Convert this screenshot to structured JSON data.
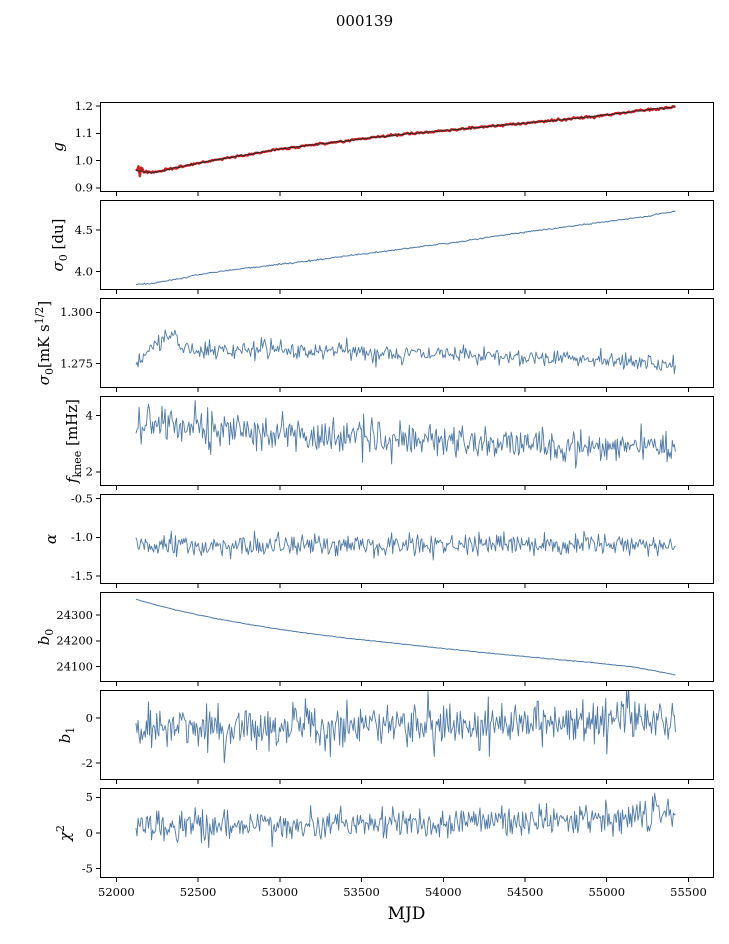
{
  "chart_data": {
    "type": "line",
    "title": "000139",
    "xlabel": "MJD",
    "x_range": [
      51900,
      55650
    ],
    "x_data_range": [
      52120,
      55420
    ],
    "xtick_values": [
      52000,
      52500,
      53000,
      53500,
      54000,
      54500,
      55000,
      55500
    ],
    "xtick_labels": [
      "52000",
      "52500",
      "53000",
      "53500",
      "54000",
      "54500",
      "55000",
      "55500"
    ],
    "axis_color": "#000000",
    "line_color_blue": "#4d79a7",
    "line_color_red": "#cc2020",
    "line_color_dark": "#262626",
    "subplots": [
      {
        "slug": "g",
        "ylabel": [
          [
            "g",
            "it"
          ]
        ],
        "ylim": [
          0.885,
          1.215
        ],
        "yticks": [
          0.9,
          1.0,
          1.1,
          1.2
        ],
        "ytick_labels": [
          "0.9",
          "1.0",
          "1.1",
          "1.2"
        ],
        "series": [
          {
            "name": "g-calibration-red",
            "color": "#cc2020",
            "width": 2.4,
            "n": 420,
            "noise": 0.002,
            "seed": 7,
            "start_noise": {
              "amp": 0.03,
              "tau": 4
            },
            "anchors": [
              [
                52120,
                0.966
              ],
              [
                52170,
                0.957
              ],
              [
                52250,
                0.958
              ],
              [
                52400,
                0.979
              ],
              [
                52600,
                1.002
              ],
              [
                52800,
                1.022
              ],
              [
                53000,
                1.043
              ],
              [
                53200,
                1.058
              ],
              [
                53400,
                1.072
              ],
              [
                53600,
                1.087
              ],
              [
                53800,
                1.099
              ],
              [
                54000,
                1.11
              ],
              [
                54200,
                1.121
              ],
              [
                54400,
                1.132
              ],
              [
                54600,
                1.143
              ],
              [
                54800,
                1.154
              ],
              [
                55000,
                1.168
              ],
              [
                55150,
                1.179
              ],
              [
                55300,
                1.19
              ],
              [
                55420,
                1.197
              ]
            ]
          },
          {
            "name": "g-calibration-dark",
            "color": "#262626",
            "width": 0.9,
            "n": 420,
            "noise": 0.0012,
            "seed": 8,
            "anchors": [
              [
                52120,
                0.966
              ],
              [
                52170,
                0.957
              ],
              [
                52250,
                0.958
              ],
              [
                52400,
                0.979
              ],
              [
                52600,
                1.002
              ],
              [
                52800,
                1.022
              ],
              [
                53000,
                1.043
              ],
              [
                53200,
                1.058
              ],
              [
                53400,
                1.072
              ],
              [
                53600,
                1.087
              ],
              [
                53800,
                1.099
              ],
              [
                54000,
                1.11
              ],
              [
                54200,
                1.121
              ],
              [
                54400,
                1.132
              ],
              [
                54600,
                1.143
              ],
              [
                54800,
                1.154
              ],
              [
                55000,
                1.168
              ],
              [
                55150,
                1.179
              ],
              [
                55300,
                1.19
              ],
              [
                55420,
                1.197
              ]
            ]
          }
        ]
      },
      {
        "slug": "sigma0-du",
        "ylabel": [
          [
            "σ",
            "it"
          ],
          [
            "0",
            "sub"
          ],
          [
            " [du]",
            ""
          ]
        ],
        "ylim": [
          3.78,
          4.86
        ],
        "yticks": [
          4.0,
          4.5
        ],
        "ytick_labels": [
          "4.0",
          "4.5"
        ],
        "series": [
          {
            "name": "sigma0-du",
            "color": "#4d79a7",
            "width": 1.0,
            "n": 450,
            "noise": 0.0045,
            "seed": 21,
            "anchors": [
              [
                52120,
                3.85
              ],
              [
                52200,
                3.855
              ],
              [
                52350,
                3.9
              ],
              [
                52500,
                3.965
              ],
              [
                52700,
                4.02
              ],
              [
                52900,
                4.065
              ],
              [
                53100,
                4.11
              ],
              [
                53300,
                4.16
              ],
              [
                53500,
                4.21
              ],
              [
                53700,
                4.26
              ],
              [
                53900,
                4.31
              ],
              [
                54100,
                4.36
              ],
              [
                54300,
                4.42
              ],
              [
                54500,
                4.475
              ],
              [
                54700,
                4.525
              ],
              [
                54900,
                4.575
              ],
              [
                55100,
                4.625
              ],
              [
                55250,
                4.665
              ],
              [
                55420,
                4.73
              ]
            ]
          }
        ]
      },
      {
        "slug": "sigma0-mks",
        "ylabel": [
          [
            "σ",
            "it"
          ],
          [
            "0",
            "sub"
          ],
          [
            "[mK s",
            ""
          ],
          [
            "1/2",
            "sup"
          ],
          [
            "]",
            ""
          ]
        ],
        "ylim": [
          1.263,
          1.307
        ],
        "yticks": [
          1.275,
          1.3
        ],
        "ytick_labels": [
          "1.275",
          "1.300"
        ],
        "series": [
          {
            "name": "sigma0-mks",
            "color": "#4d79a7",
            "width": 0.9,
            "n": 500,
            "noise": 0.0021,
            "seed": 31,
            "anchors": [
              [
                52120,
                1.2735
              ],
              [
                52180,
                1.2795
              ],
              [
                52260,
                1.2865
              ],
              [
                52340,
                1.2885
              ],
              [
                52420,
                1.2835
              ],
              [
                52550,
                1.2805
              ],
              [
                52700,
                1.2815
              ],
              [
                52900,
                1.2825
              ],
              [
                53100,
                1.2805
              ],
              [
                53300,
                1.2815
              ],
              [
                53600,
                1.28
              ],
              [
                53900,
                1.2795
              ],
              [
                54200,
                1.279
              ],
              [
                54500,
                1.2785
              ],
              [
                54800,
                1.2775
              ],
              [
                55000,
                1.277
              ],
              [
                55200,
                1.276
              ],
              [
                55350,
                1.2745
              ],
              [
                55420,
                1.273
              ]
            ]
          }
        ]
      },
      {
        "slug": "f-knee",
        "ylabel": [
          [
            "f",
            "it"
          ],
          [
            "knee",
            "sub"
          ],
          [
            " [mHz]",
            ""
          ]
        ],
        "ylim": [
          1.5,
          4.7
        ],
        "yticks": [
          2,
          4
        ],
        "ytick_labels": [
          "2",
          "4"
        ],
        "series": [
          {
            "name": "f-knee",
            "color": "#4d79a7",
            "width": 0.9,
            "n": 520,
            "noise": 0.3,
            "seed": 41,
            "start_noise": {
              "amp": 0.28,
              "tau": 70
            },
            "anchors": [
              [
                52120,
                3.8
              ],
              [
                52300,
                3.75
              ],
              [
                52500,
                3.6
              ],
              [
                52800,
                3.45
              ],
              [
                53100,
                3.3
              ],
              [
                53400,
                3.22
              ],
              [
                53800,
                3.12
              ],
              [
                54200,
                3.05
              ],
              [
                54600,
                3.0
              ],
              [
                55000,
                2.95
              ],
              [
                55420,
                2.92
              ]
            ]
          }
        ]
      },
      {
        "slug": "alpha",
        "ylabel": [
          [
            "α",
            "it"
          ]
        ],
        "ylim": [
          -1.6,
          -0.44
        ],
        "yticks": [
          -0.5,
          -1.0,
          -1.5
        ],
        "ytick_labels": [
          "-0.5",
          "-1.0",
          "-1.5"
        ],
        "series": [
          {
            "name": "alpha",
            "color": "#4d79a7",
            "width": 0.9,
            "n": 520,
            "noise": 0.068,
            "seed": 51,
            "anchors": [
              [
                52120,
                -1.12
              ],
              [
                53000,
                -1.11
              ],
              [
                54000,
                -1.105
              ],
              [
                55420,
                -1.1
              ]
            ]
          }
        ]
      },
      {
        "slug": "b0",
        "ylabel": [
          [
            "b",
            "it"
          ],
          [
            "0",
            "sub"
          ]
        ],
        "ylim": [
          24040,
          24390
        ],
        "yticks": [
          24100,
          24200,
          24300
        ],
        "ytick_labels": [
          "24100",
          "24200",
          "24300"
        ],
        "series": [
          {
            "name": "b0",
            "color": "#4d79a7",
            "width": 1.0,
            "n": 450,
            "noise": 0.7,
            "seed": 61,
            "anchors": [
              [
                52120,
                24362
              ],
              [
                52250,
                24338
              ],
              [
                52400,
                24315
              ],
              [
                52600,
                24288
              ],
              [
                52800,
                24265
              ],
              [
                53000,
                24245
              ],
              [
                53200,
                24227
              ],
              [
                53400,
                24211
              ],
              [
                53700,
                24191
              ],
              [
                54000,
                24170
              ],
              [
                54300,
                24151
              ],
              [
                54600,
                24133
              ],
              [
                54900,
                24116
              ],
              [
                55150,
                24100
              ],
              [
                55420,
                24068
              ]
            ]
          }
        ]
      },
      {
        "slug": "b1",
        "ylabel": [
          [
            "b",
            "it"
          ],
          [
            "1",
            "sub"
          ]
        ],
        "ylim": [
          -2.75,
          1.25
        ],
        "yticks": [
          0,
          -2
        ],
        "ytick_labels": [
          "0",
          "-2"
        ],
        "series": [
          {
            "name": "b1",
            "color": "#4d79a7",
            "width": 0.9,
            "n": 520,
            "noise": 0.5,
            "seed": 71,
            "anchors": [
              [
                52120,
                -0.42
              ],
              [
                52700,
                -0.48
              ],
              [
                53300,
                -0.35
              ],
              [
                54000,
                -0.22
              ],
              [
                54700,
                -0.15
              ],
              [
                55420,
                -0.1
              ]
            ]
          }
        ]
      },
      {
        "slug": "chi2",
        "ylabel": [
          [
            "χ",
            "it"
          ],
          [
            "2",
            "sup"
          ]
        ],
        "ylim": [
          -6.3,
          6.3
        ],
        "yticks": [
          5,
          0,
          -5
        ],
        "ytick_labels": [
          "5",
          "0",
          "-5"
        ],
        "series": [
          {
            "name": "chi2",
            "color": "#4d79a7",
            "width": 0.9,
            "n": 520,
            "noise": 1.05,
            "seed": 81,
            "anchors": [
              [
                52120,
                0.95
              ],
              [
                53000,
                1.15
              ],
              [
                54000,
                1.5
              ],
              [
                54700,
                2.0
              ],
              [
                55420,
                2.55
              ]
            ]
          }
        ]
      }
    ]
  }
}
